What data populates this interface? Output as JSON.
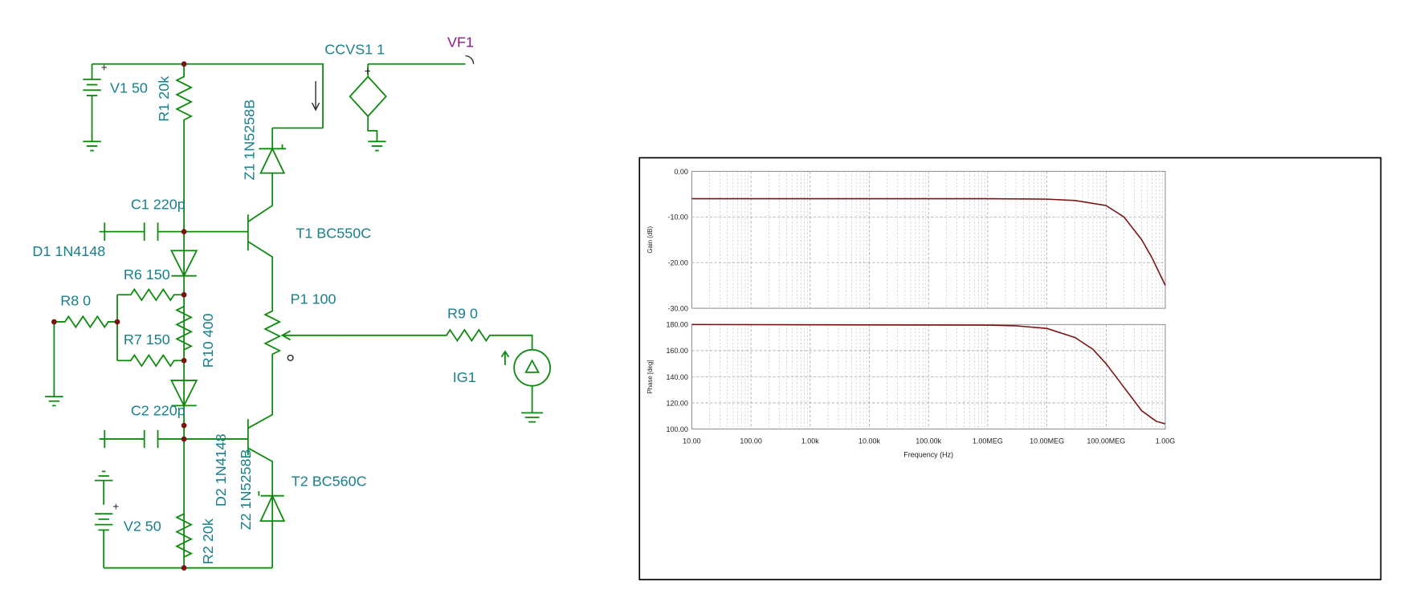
{
  "schematic": {
    "labels": [
      "CCVS1 1",
      "VF1",
      "V1 50",
      "R1 20k",
      "Z1 1N5258B",
      "C1 220p",
      "T1 BC550C",
      "D1 1N4148",
      "R6 150",
      "R8 0",
      "P1 100",
      "R9 0",
      "R7 150",
      "R10 400",
      "IG1",
      "C2 220p",
      "D2 1N4148",
      "Z2 1N5258B",
      "T2 BC560C",
      "V2 50",
      "R2 20k"
    ]
  },
  "chart_data": [
    {
      "type": "line",
      "y_label": "Gain (dB)",
      "log_x": true,
      "grid": true,
      "color": "#7a1414",
      "xlim": [
        10,
        1000000000
      ],
      "ylim": [
        -30,
        0
      ],
      "yticks": [
        {
          "value": 0,
          "label": "0.00"
        },
        {
          "value": -10,
          "label": "-10.00"
        },
        {
          "value": -20,
          "label": "-20.00"
        },
        {
          "value": -30,
          "label": "-30.00"
        }
      ],
      "x": [
        10,
        1000,
        100000,
        1000000,
        10000000,
        30000000,
        100000000,
        200000000,
        400000000,
        600000000,
        1000000000
      ],
      "values": [
        -6,
        -6,
        -6,
        -6,
        -6.1,
        -6.4,
        -7.5,
        -10,
        -15,
        -19,
        -25
      ]
    },
    {
      "type": "line",
      "y_label": "Phase [deg]",
      "x_label": "Frequency (Hz)",
      "log_x": true,
      "grid": true,
      "color": "#7a1414",
      "xlim": [
        10,
        1000000000
      ],
      "ylim": [
        100,
        180
      ],
      "xticks": [
        {
          "value": 10,
          "label": "10.00"
        },
        {
          "value": 100,
          "label": "100.00"
        },
        {
          "value": 1000,
          "label": "1.00k"
        },
        {
          "value": 10000,
          "label": "10.00k"
        },
        {
          "value": 100000,
          "label": "100.00k"
        },
        {
          "value": 1000000,
          "label": "1.00MEG"
        },
        {
          "value": 10000000,
          "label": "10.00MEG"
        },
        {
          "value": 100000000,
          "label": "100.00MEG"
        },
        {
          "value": 1000000000,
          "label": "1.00G"
        }
      ],
      "yticks": [
        {
          "value": 180,
          "label": "180.00"
        },
        {
          "value": 160,
          "label": "160.00"
        },
        {
          "value": 140,
          "label": "140.00"
        },
        {
          "value": 120,
          "label": "120.00"
        },
        {
          "value": 100,
          "label": "100.00"
        }
      ],
      "x": [
        10,
        1000000,
        3000000,
        10000000,
        30000000,
        60000000,
        100000000,
        200000000,
        400000000,
        700000000,
        1000000000
      ],
      "values": [
        180,
        179.5,
        179,
        177,
        170,
        161,
        150,
        132,
        114,
        106,
        104
      ]
    }
  ]
}
